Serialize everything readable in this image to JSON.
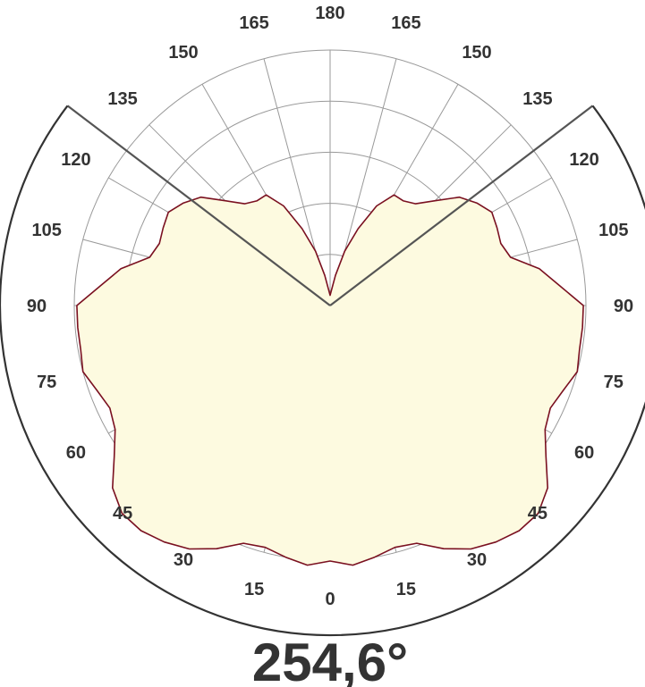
{
  "chart_data": {
    "type": "polar",
    "title": "",
    "angle_ticks_left": [
      "0",
      "15",
      "30",
      "45",
      "60",
      "75",
      "90",
      "105",
      "120",
      "135",
      "150",
      "165",
      "180"
    ],
    "angle_ticks_right": [
      "15",
      "30",
      "45",
      "60",
      "75",
      "90",
      "105",
      "120",
      "135",
      "150",
      "165"
    ],
    "beam_angle_label": "254,6°",
    "beam_angle_deg": 254.6,
    "radial_rings": 5,
    "grid": true,
    "series": [
      {
        "fill_color": "#fdfae0",
        "line_color": "#7a1020",
        "angle_deg": [
          0,
          5,
          10,
          15,
          20,
          25,
          30,
          35,
          40,
          45,
          50,
          55,
          60,
          65,
          70,
          75,
          80,
          85,
          90,
          95,
          100,
          105,
          110,
          115,
          120,
          125,
          130,
          135,
          140,
          145,
          150,
          155,
          160,
          165,
          170,
          175,
          180
        ],
        "r": [
          1.0,
          1.02,
          1.0,
          0.98,
          0.99,
          1.05,
          1.1,
          1.13,
          1.15,
          1.15,
          1.11,
          1.03,
          0.97,
          0.95,
          0.97,
          1.0,
          0.99,
          0.99,
          0.99,
          0.9,
          0.83,
          0.73,
          0.71,
          0.72,
          0.73,
          0.7,
          0.66,
          0.58,
          0.52,
          0.5,
          0.5,
          0.43,
          0.32,
          0.22,
          0.12,
          0.06,
          0.04
        ]
      }
    ],
    "colors": {
      "grid": "#999999",
      "axis_outline": "#333333",
      "beam_lines": "#555555",
      "text": "#333333"
    }
  }
}
